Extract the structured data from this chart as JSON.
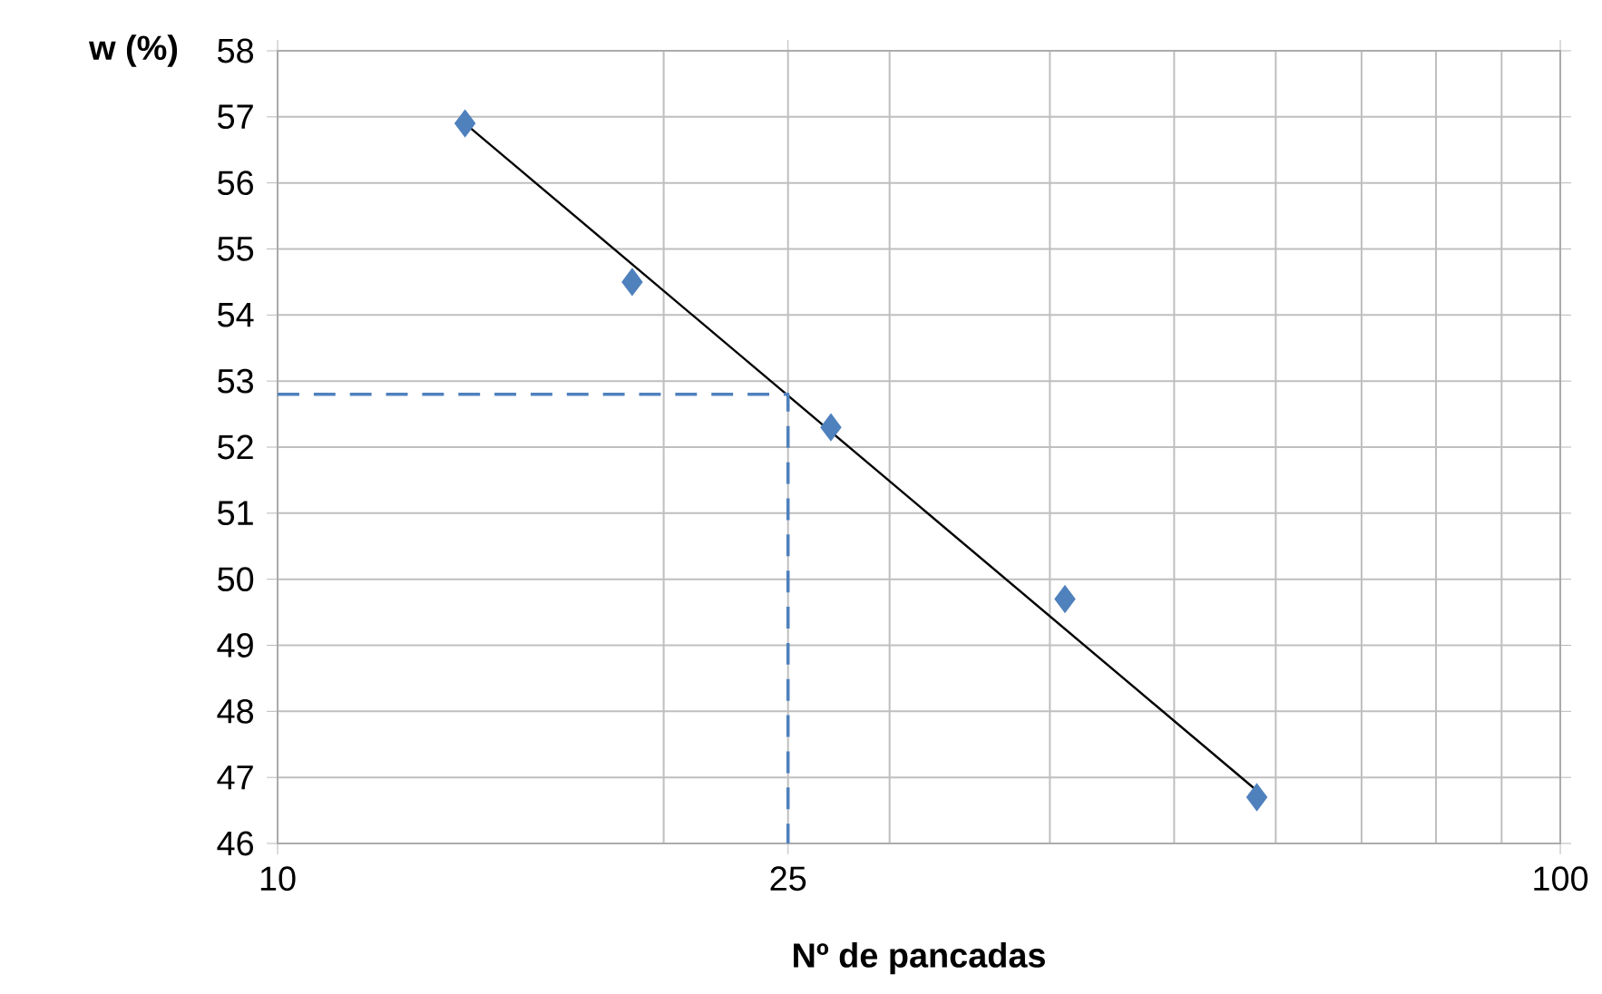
{
  "chart_data": {
    "type": "scatter",
    "xlabel": "Nº de pancadas",
    "ylabel": "w (%)",
    "log": "x",
    "xlim": [
      10,
      100
    ],
    "xticks": [
      10,
      25,
      100
    ],
    "ylim": [
      46,
      58
    ],
    "yticks": [
      46,
      47,
      48,
      49,
      50,
      51,
      52,
      53,
      54,
      55,
      56,
      57,
      58
    ],
    "grid": true,
    "series": [
      {
        "color": "#4f81bd",
        "marker": "diamond",
        "x": [
          14.0,
          18.9,
          27.0,
          41.1,
          58.0
        ],
        "values": [
          56.9,
          54.5,
          52.3,
          49.7,
          46.7
        ]
      },
      {
        "type": "line",
        "color": "#000000",
        "marker": "none",
        "line_style": "solid",
        "x": [
          14.0,
          58.0
        ],
        "values": [
          56.9,
          46.8
        ]
      },
      {
        "type": "line",
        "color": "#4f81bd",
        "marker": "none",
        "line_style": "dashed",
        "x": [
          10,
          25,
          25
        ],
        "values": [
          52.8,
          52.8,
          46
        ]
      }
    ]
  }
}
